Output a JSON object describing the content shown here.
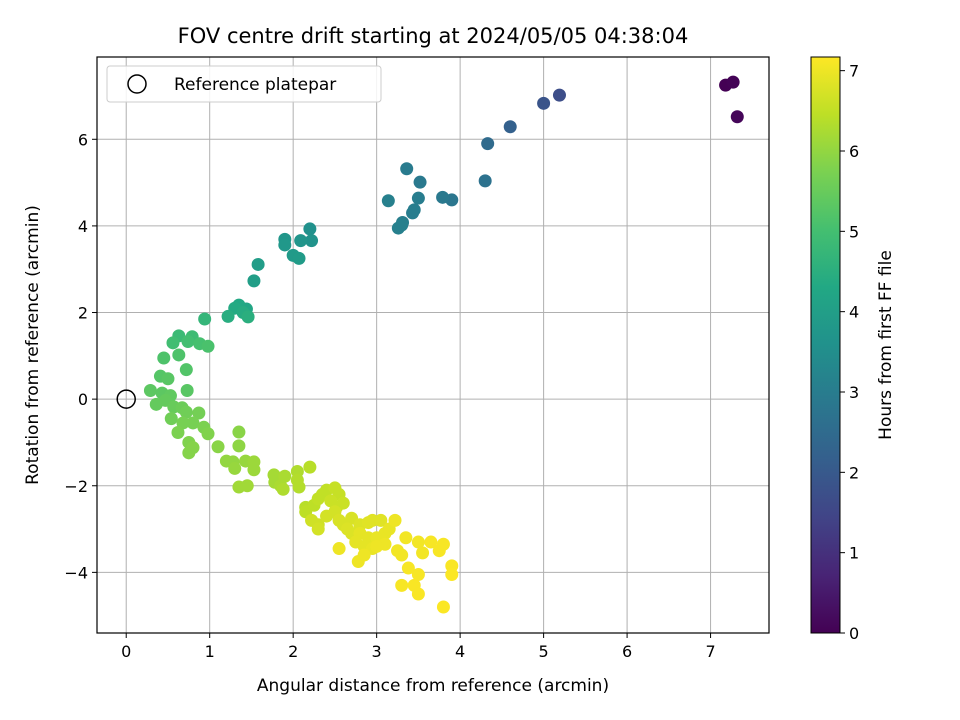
{
  "chart_data": {
    "type": "scatter",
    "title": "FOV centre drift starting at 2024/05/05 04:38:04",
    "xlabel": "Angular distance from reference (arcmin)",
    "ylabel": "Rotation from reference (arcmin)",
    "xlim": [
      -0.35,
      7.7
    ],
    "ylim": [
      -5.4,
      7.9
    ],
    "xticks": [
      "0",
      "1",
      "2",
      "3",
      "4",
      "5",
      "6",
      "7"
    ],
    "yticks": [
      "−4",
      "−2",
      "0",
      "2",
      "4",
      "6"
    ],
    "grid": true,
    "legend": {
      "position": "top-left",
      "entries": [
        "Reference platepar"
      ]
    },
    "reference_point": {
      "x": 0,
      "y": 0
    },
    "colorbar": {
      "label": "Hours from first FF file",
      "colormap": "viridis",
      "range": [
        0,
        7.17
      ],
      "ticks": [
        "0",
        "1",
        "2",
        "3",
        "4",
        "5",
        "6",
        "7"
      ]
    },
    "points": [
      {
        "x": 7.18,
        "y": 7.25,
        "h": 0.0
      },
      {
        "x": 7.27,
        "y": 7.32,
        "h": 0.05
      },
      {
        "x": 7.32,
        "y": 6.52,
        "h": 0.1
      },
      {
        "x": 5.19,
        "y": 7.02,
        "h": 1.7
      },
      {
        "x": 5.0,
        "y": 6.83,
        "h": 1.85
      },
      {
        "x": 4.6,
        "y": 6.29,
        "h": 2.2
      },
      {
        "x": 4.33,
        "y": 5.9,
        "h": 2.5
      },
      {
        "x": 4.3,
        "y": 5.04,
        "h": 2.7
      },
      {
        "x": 3.9,
        "y": 4.6,
        "h": 2.8
      },
      {
        "x": 3.79,
        "y": 4.66,
        "h": 2.9
      },
      {
        "x": 3.52,
        "y": 5.01,
        "h": 2.9
      },
      {
        "x": 3.36,
        "y": 5.32,
        "h": 2.95
      },
      {
        "x": 3.5,
        "y": 4.64,
        "h": 3.0
      },
      {
        "x": 3.43,
        "y": 4.3,
        "h": 3.0
      },
      {
        "x": 3.45,
        "y": 4.37,
        "h": 3.0
      },
      {
        "x": 3.31,
        "y": 4.08,
        "h": 3.05
      },
      {
        "x": 3.26,
        "y": 3.95,
        "h": 3.1
      },
      {
        "x": 3.14,
        "y": 4.58,
        "h": 3.1
      },
      {
        "x": 3.3,
        "y": 4.02,
        "h": 3.1
      },
      {
        "x": 2.2,
        "y": 3.93,
        "h": 3.6
      },
      {
        "x": 2.22,
        "y": 3.66,
        "h": 3.65
      },
      {
        "x": 2.09,
        "y": 3.66,
        "h": 3.7
      },
      {
        "x": 1.9,
        "y": 3.69,
        "h": 3.75
      },
      {
        "x": 1.9,
        "y": 3.56,
        "h": 3.8
      },
      {
        "x": 2.0,
        "y": 3.32,
        "h": 3.85
      },
      {
        "x": 2.07,
        "y": 3.25,
        "h": 3.9
      },
      {
        "x": 1.58,
        "y": 3.11,
        "h": 3.95
      },
      {
        "x": 1.53,
        "y": 2.73,
        "h": 4.0
      },
      {
        "x": 1.44,
        "y": 2.08,
        "h": 4.25
      },
      {
        "x": 1.35,
        "y": 2.17,
        "h": 4.3
      },
      {
        "x": 1.3,
        "y": 2.1,
        "h": 4.35
      },
      {
        "x": 1.4,
        "y": 2.0,
        "h": 4.4
      },
      {
        "x": 1.22,
        "y": 1.91,
        "h": 4.45
      },
      {
        "x": 1.46,
        "y": 1.9,
        "h": 4.5
      },
      {
        "x": 0.94,
        "y": 1.85,
        "h": 4.7
      },
      {
        "x": 0.63,
        "y": 1.46,
        "h": 4.85
      },
      {
        "x": 0.79,
        "y": 1.44,
        "h": 4.9
      },
      {
        "x": 0.56,
        "y": 1.3,
        "h": 4.95
      },
      {
        "x": 0.74,
        "y": 1.33,
        "h": 5.0
      },
      {
        "x": 0.88,
        "y": 1.28,
        "h": 5.05
      },
      {
        "x": 0.98,
        "y": 1.22,
        "h": 5.1
      },
      {
        "x": 0.63,
        "y": 1.02,
        "h": 5.15
      },
      {
        "x": 0.45,
        "y": 0.95,
        "h": 5.15
      },
      {
        "x": 0.72,
        "y": 0.68,
        "h": 5.2
      },
      {
        "x": 0.41,
        "y": 0.53,
        "h": 5.25
      },
      {
        "x": 0.5,
        "y": 0.47,
        "h": 5.3
      },
      {
        "x": 0.73,
        "y": 0.2,
        "h": 5.3
      },
      {
        "x": 0.29,
        "y": 0.2,
        "h": 5.35
      },
      {
        "x": 0.43,
        "y": 0.14,
        "h": 5.35
      },
      {
        "x": 0.53,
        "y": 0.08,
        "h": 5.4
      },
      {
        "x": 0.47,
        "y": -0.03,
        "h": 5.45
      },
      {
        "x": 0.36,
        "y": -0.12,
        "h": 5.45
      },
      {
        "x": 0.57,
        "y": -0.18,
        "h": 5.5
      },
      {
        "x": 0.67,
        "y": -0.2,
        "h": 5.55
      },
      {
        "x": 0.72,
        "y": -0.3,
        "h": 5.6
      },
      {
        "x": 0.54,
        "y": -0.45,
        "h": 5.6
      },
      {
        "x": 0.87,
        "y": -0.32,
        "h": 5.65
      },
      {
        "x": 0.8,
        "y": -0.55,
        "h": 5.7
      },
      {
        "x": 0.68,
        "y": -0.55,
        "h": 5.7
      },
      {
        "x": 0.93,
        "y": -0.65,
        "h": 5.75
      },
      {
        "x": 0.62,
        "y": -0.77,
        "h": 5.75
      },
      {
        "x": 0.98,
        "y": -0.8,
        "h": 5.8
      },
      {
        "x": 0.75,
        "y": -1.0,
        "h": 5.8
      },
      {
        "x": 0.8,
        "y": -1.12,
        "h": 5.85
      },
      {
        "x": 0.75,
        "y": -1.24,
        "h": 5.85
      },
      {
        "x": 1.1,
        "y": -1.1,
        "h": 5.9
      },
      {
        "x": 1.35,
        "y": -0.76,
        "h": 5.9
      },
      {
        "x": 1.35,
        "y": -1.08,
        "h": 5.95
      },
      {
        "x": 1.2,
        "y": -1.43,
        "h": 6.0
      },
      {
        "x": 1.28,
        "y": -1.45,
        "h": 6.0
      },
      {
        "x": 1.3,
        "y": -1.6,
        "h": 6.05
      },
      {
        "x": 1.43,
        "y": -1.43,
        "h": 6.05
      },
      {
        "x": 1.53,
        "y": -1.45,
        "h": 6.1
      },
      {
        "x": 1.53,
        "y": -1.63,
        "h": 6.1
      },
      {
        "x": 1.45,
        "y": -2.0,
        "h": 6.15
      },
      {
        "x": 1.35,
        "y": -2.03,
        "h": 6.15
      },
      {
        "x": 1.77,
        "y": -1.75,
        "h": 6.2
      },
      {
        "x": 1.78,
        "y": -1.92,
        "h": 6.2
      },
      {
        "x": 1.85,
        "y": -2.0,
        "h": 6.25
      },
      {
        "x": 1.9,
        "y": -1.78,
        "h": 6.25
      },
      {
        "x": 1.88,
        "y": -2.08,
        "h": 6.3
      },
      {
        "x": 2.05,
        "y": -1.67,
        "h": 6.3
      },
      {
        "x": 2.05,
        "y": -1.87,
        "h": 6.35
      },
      {
        "x": 2.07,
        "y": -2.03,
        "h": 6.35
      },
      {
        "x": 2.2,
        "y": -1.57,
        "h": 6.4
      },
      {
        "x": 2.15,
        "y": -2.5,
        "h": 6.4
      },
      {
        "x": 2.15,
        "y": -2.6,
        "h": 6.45
      },
      {
        "x": 2.25,
        "y": -2.45,
        "h": 6.45
      },
      {
        "x": 2.3,
        "y": -2.3,
        "h": 6.5
      },
      {
        "x": 2.35,
        "y": -2.2,
        "h": 6.5
      },
      {
        "x": 2.4,
        "y": -2.1,
        "h": 6.5
      },
      {
        "x": 2.5,
        "y": -2.05,
        "h": 6.55
      },
      {
        "x": 2.55,
        "y": -2.2,
        "h": 6.55
      },
      {
        "x": 2.45,
        "y": -2.35,
        "h": 6.6
      },
      {
        "x": 2.52,
        "y": -2.5,
        "h": 6.6
      },
      {
        "x": 2.6,
        "y": -2.4,
        "h": 6.6
      },
      {
        "x": 2.3,
        "y": -2.9,
        "h": 6.65
      },
      {
        "x": 2.22,
        "y": -2.8,
        "h": 6.65
      },
      {
        "x": 2.3,
        "y": -3.0,
        "h": 6.7
      },
      {
        "x": 2.4,
        "y": -2.7,
        "h": 6.7
      },
      {
        "x": 2.5,
        "y": -2.6,
        "h": 6.7
      },
      {
        "x": 2.55,
        "y": -2.8,
        "h": 6.75
      },
      {
        "x": 2.6,
        "y": -2.9,
        "h": 6.75
      },
      {
        "x": 2.7,
        "y": -2.75,
        "h": 6.75
      },
      {
        "x": 2.65,
        "y": -3.0,
        "h": 6.8
      },
      {
        "x": 2.7,
        "y": -3.1,
        "h": 6.8
      },
      {
        "x": 2.8,
        "y": -2.9,
        "h": 6.8
      },
      {
        "x": 2.9,
        "y": -2.85,
        "h": 6.85
      },
      {
        "x": 2.95,
        "y": -2.8,
        "h": 6.85
      },
      {
        "x": 3.05,
        "y": -2.8,
        "h": 6.85
      },
      {
        "x": 2.8,
        "y": -3.1,
        "h": 6.9
      },
      {
        "x": 2.9,
        "y": -3.2,
        "h": 6.9
      },
      {
        "x": 2.75,
        "y": -3.3,
        "h": 6.9
      },
      {
        "x": 2.85,
        "y": -3.4,
        "h": 6.9
      },
      {
        "x": 2.95,
        "y": -3.45,
        "h": 6.95
      },
      {
        "x": 3.0,
        "y": -3.2,
        "h": 6.95
      },
      {
        "x": 3.1,
        "y": -3.1,
        "h": 6.95
      },
      {
        "x": 3.15,
        "y": -3.0,
        "h": 6.95
      },
      {
        "x": 3.22,
        "y": -2.8,
        "h": 7.0
      },
      {
        "x": 3.1,
        "y": -3.35,
        "h": 7.0
      },
      {
        "x": 3.0,
        "y": -3.4,
        "h": 7.0
      },
      {
        "x": 2.55,
        "y": -3.45,
        "h": 7.0
      },
      {
        "x": 2.78,
        "y": -3.75,
        "h": 7.0
      },
      {
        "x": 2.85,
        "y": -3.6,
        "h": 7.0
      },
      {
        "x": 3.25,
        "y": -3.5,
        "h": 7.05
      },
      {
        "x": 3.3,
        "y": -3.6,
        "h": 7.05
      },
      {
        "x": 3.35,
        "y": -3.2,
        "h": 7.05
      },
      {
        "x": 3.5,
        "y": -3.3,
        "h": 7.05
      },
      {
        "x": 3.55,
        "y": -3.55,
        "h": 7.05
      },
      {
        "x": 3.65,
        "y": -3.3,
        "h": 7.1
      },
      {
        "x": 3.75,
        "y": -3.5,
        "h": 7.1
      },
      {
        "x": 3.8,
        "y": -3.35,
        "h": 7.1
      },
      {
        "x": 3.38,
        "y": -3.9,
        "h": 7.1
      },
      {
        "x": 3.5,
        "y": -4.05,
        "h": 7.1
      },
      {
        "x": 3.3,
        "y": -4.3,
        "h": 7.1
      },
      {
        "x": 3.45,
        "y": -4.3,
        "h": 7.12
      },
      {
        "x": 3.5,
        "y": -4.5,
        "h": 7.12
      },
      {
        "x": 3.9,
        "y": -3.85,
        "h": 7.12
      },
      {
        "x": 3.9,
        "y": -4.05,
        "h": 7.15
      },
      {
        "x": 3.8,
        "y": -4.8,
        "h": 7.15
      }
    ]
  }
}
